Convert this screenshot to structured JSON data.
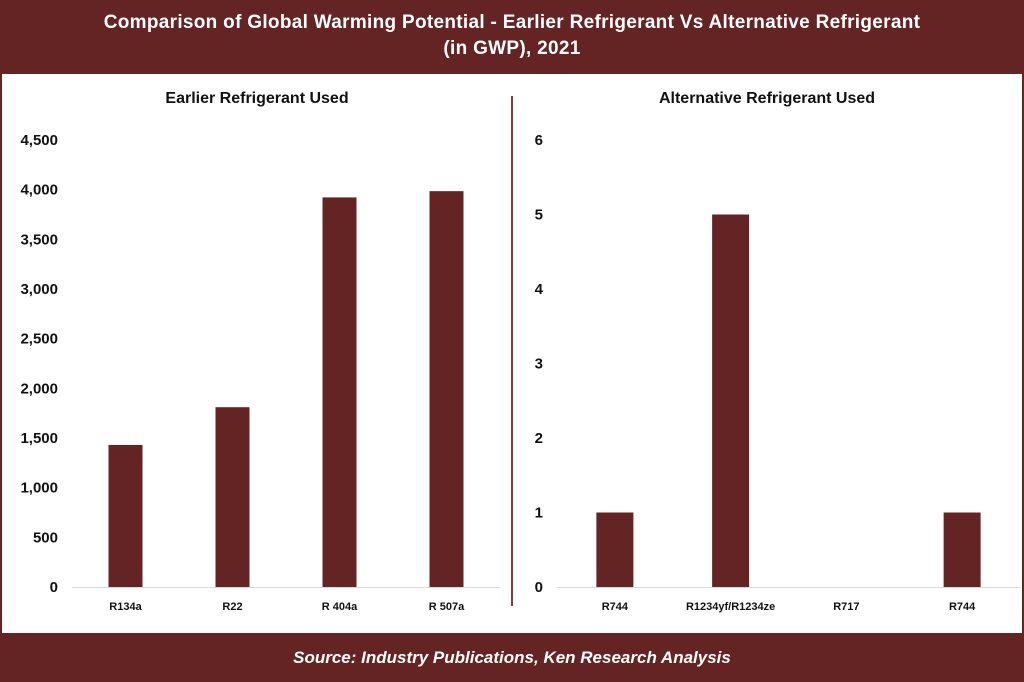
{
  "title": "Comparison of Global Warming Potential - Earlier Refrigerant Vs Alternative Refrigerant (in GWP), 2021",
  "title_line1": "Comparison of Global Warming Potential - Earlier Refrigerant Vs Alternative Refrigerant",
  "title_line2": "(in GWP), 2021",
  "source": "Source: Industry Publications, Ken Research Analysis",
  "colors": {
    "bar": "#632423",
    "band": "#632423"
  },
  "chart_data": [
    {
      "type": "bar",
      "title": "Earlier Refrigerant Used",
      "categories": [
        "R134a",
        "R22",
        "R 404a",
        "R 507a"
      ],
      "values": [
        1430,
        1810,
        3922,
        3985
      ],
      "ylim": [
        0,
        4500
      ],
      "yticks": [
        "0",
        "500",
        "1,000",
        "1,500",
        "2,000",
        "2,500",
        "3,000",
        "3,500",
        "4,000",
        "4,500"
      ],
      "grid": false
    },
    {
      "type": "bar",
      "title": "Alternative Refrigerant Used",
      "categories": [
        "R744",
        "R1234yf/R1234ze",
        "R717",
        "R744"
      ],
      "values": [
        1,
        5,
        0,
        1
      ],
      "ylim": [
        0,
        6
      ],
      "yticks": [
        "0",
        "1",
        "2",
        "3",
        "4",
        "5",
        "6"
      ],
      "grid": false
    }
  ]
}
